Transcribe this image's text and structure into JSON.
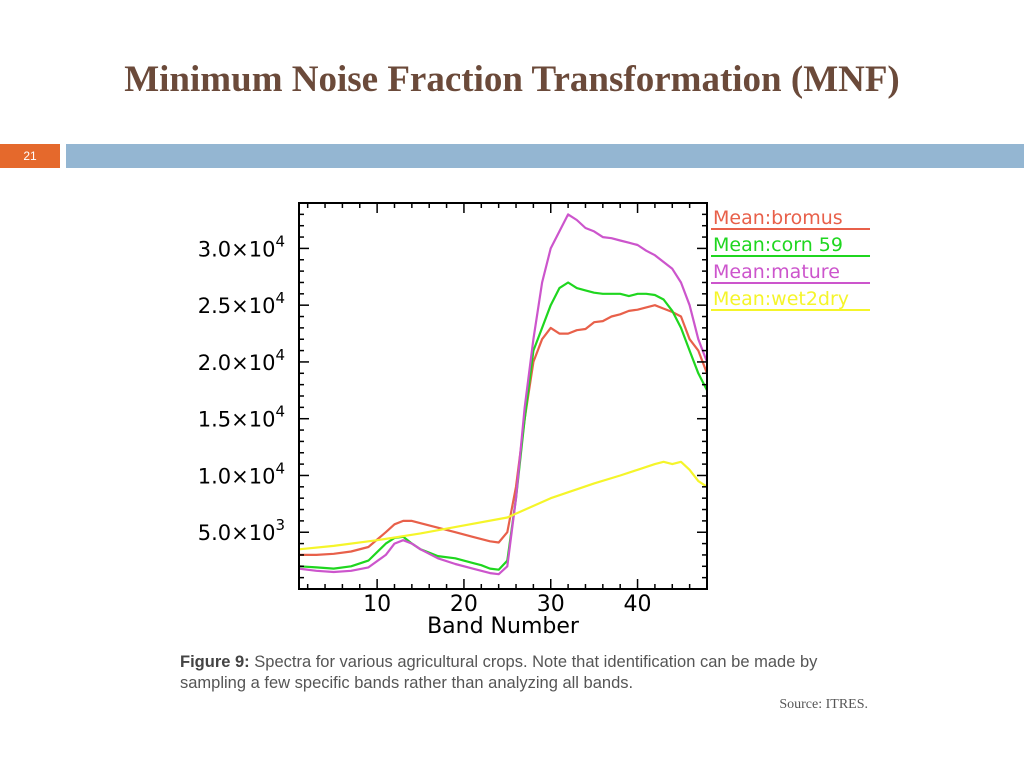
{
  "slide": {
    "title": "Minimum Noise Fraction Transformation (MNF)",
    "number": "21"
  },
  "caption": {
    "label": "Figure 9:",
    "text": " Spectra for various agricultural crops. Note that identification can be made by sampling a few specific bands rather than analyzing all bands.",
    "source": "Source: ITRES."
  },
  "colors": {
    "title": "#6b4a3a",
    "slide_number_bg": "#e5692c",
    "header_bar": "#94b6d2"
  },
  "chart_data": {
    "type": "line",
    "title": "",
    "xlabel": "Band Number",
    "ylabel": "",
    "xlim": [
      1,
      48
    ],
    "ylim": [
      0,
      34000
    ],
    "xticks": [
      10,
      20,
      30,
      40
    ],
    "xtick_labels": [
      "10",
      "20",
      "30",
      "40"
    ],
    "yticks": [
      5000,
      10000,
      15000,
      20000,
      25000,
      30000
    ],
    "ytick_labels": [
      {
        "mantissa": "5.0×10",
        "exp": "3"
      },
      {
        "mantissa": "1.0×10",
        "exp": "4"
      },
      {
        "mantissa": "1.5×10",
        "exp": "4"
      },
      {
        "mantissa": "2.0×10",
        "exp": "4"
      },
      {
        "mantissa": "2.5×10",
        "exp": "4"
      },
      {
        "mantissa": "3.0×10",
        "exp": "4"
      }
    ],
    "legend_position": "right, outside plot",
    "grid": false,
    "series": [
      {
        "name": "Mean:bromus",
        "color": "#e8604a",
        "x": [
          1,
          3,
          5,
          7,
          9,
          11,
          12,
          13,
          14,
          15,
          17,
          19,
          21,
          23,
          24,
          25,
          26,
          27,
          28,
          29,
          30,
          31,
          32,
          33,
          34,
          35,
          36,
          37,
          38,
          39,
          40,
          41,
          42,
          43,
          44,
          45,
          46,
          47,
          48
        ],
        "y": [
          3000,
          3000,
          3100,
          3300,
          3700,
          5000,
          5700,
          6000,
          6000,
          5800,
          5400,
          5000,
          4600,
          4200,
          4100,
          5000,
          9000,
          15000,
          20000,
          22000,
          23000,
          22500,
          22500,
          22800,
          22900,
          23500,
          23600,
          24000,
          24200,
          24500,
          24600,
          24800,
          25000,
          24700,
          24400,
          24000,
          22000,
          21000,
          19000
        ]
      },
      {
        "name": "Mean:corn 59",
        "color": "#1fd61f",
        "x": [
          1,
          3,
          5,
          7,
          9,
          11,
          12,
          13,
          14,
          15,
          16,
          17,
          19,
          21,
          22,
          23,
          24,
          25,
          26,
          27,
          28,
          29,
          30,
          31,
          32,
          33,
          34,
          35,
          36,
          37,
          38,
          39,
          40,
          41,
          42,
          43,
          44,
          45,
          46,
          47,
          48
        ],
        "y": [
          2000,
          1900,
          1800,
          2000,
          2500,
          4000,
          4500,
          4600,
          4000,
          3500,
          3200,
          2900,
          2700,
          2300,
          2100,
          1800,
          1700,
          2500,
          8000,
          15000,
          21000,
          23000,
          25000,
          26500,
          27000,
          26500,
          26300,
          26100,
          26000,
          26000,
          26000,
          25800,
          26000,
          26000,
          25900,
          25500,
          24500,
          23000,
          21000,
          19000,
          17500
        ]
      },
      {
        "name": "Mean:mature",
        "color": "#cc55cc",
        "x": [
          1,
          3,
          5,
          7,
          9,
          11,
          12,
          13,
          14,
          15,
          17,
          19,
          21,
          23,
          24,
          25,
          26,
          27,
          28,
          29,
          30,
          31,
          32,
          33,
          34,
          35,
          36,
          37,
          38,
          39,
          40,
          41,
          42,
          43,
          44,
          45,
          46,
          47,
          48
        ],
        "y": [
          1800,
          1600,
          1500,
          1600,
          1900,
          3000,
          4000,
          4300,
          4000,
          3500,
          2700,
          2200,
          1800,
          1400,
          1300,
          2000,
          8000,
          16000,
          22000,
          27000,
          30000,
          31500,
          33000,
          32500,
          31800,
          31500,
          31000,
          30900,
          30700,
          30500,
          30300,
          29800,
          29400,
          28800,
          28200,
          27000,
          25000,
          22000,
          20000
        ]
      },
      {
        "name": "Mean:wet2dry",
        "color": "#f5f52a",
        "x": [
          1,
          5,
          10,
          15,
          20,
          25,
          30,
          35,
          38,
          40,
          42,
          43,
          44,
          45,
          46,
          47,
          48
        ],
        "y": [
          3500,
          3800,
          4300,
          4900,
          5600,
          6300,
          8000,
          9300,
          10000,
          10500,
          11000,
          11200,
          11000,
          11200,
          10500,
          9500,
          9000
        ]
      }
    ]
  }
}
